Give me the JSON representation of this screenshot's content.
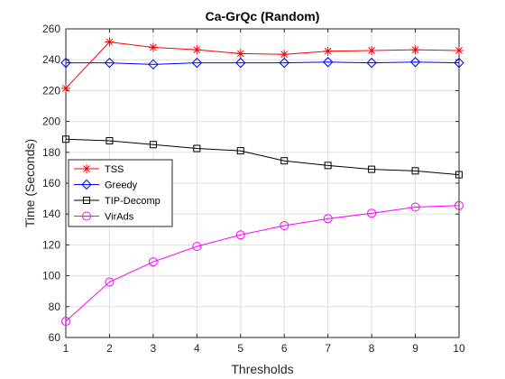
{
  "chart_data": {
    "type": "line",
    "title": "Ca-GrQc (Random)",
    "xlabel": "Thresholds",
    "ylabel": "Time (Seconds)",
    "xlim": [
      1,
      10
    ],
    "ylim": [
      60,
      260
    ],
    "xticks": [
      1,
      2,
      3,
      4,
      5,
      6,
      7,
      8,
      9,
      10
    ],
    "yticks": [
      60,
      80,
      100,
      120,
      140,
      160,
      180,
      200,
      220,
      240,
      260
    ],
    "grid": true,
    "legend_position": "middle-left",
    "x": [
      1,
      2,
      3,
      4,
      5,
      6,
      7,
      8,
      9,
      10
    ],
    "series": [
      {
        "name": "TSS",
        "color": "#ff0000",
        "marker": "star",
        "values": [
          221.5,
          251.5,
          248,
          246.5,
          244,
          243.5,
          245.5,
          246,
          246.5,
          246
        ]
      },
      {
        "name": "Greedy",
        "color": "#0000ff",
        "marker": "diamond",
        "values": [
          238,
          238,
          237,
          238,
          238,
          238,
          238.5,
          238,
          238.5,
          238
        ]
      },
      {
        "name": "TIP-Decomp",
        "color": "#000000",
        "marker": "square",
        "values": [
          188.5,
          187.5,
          185,
          182.5,
          181,
          174.5,
          171.5,
          169,
          168,
          165.5
        ]
      },
      {
        "name": "VirAds",
        "color": "#ff00ff",
        "marker": "circle",
        "values": [
          70.5,
          96,
          109,
          119,
          126.5,
          132.5,
          137,
          140.5,
          144.5,
          145.5
        ]
      }
    ]
  }
}
